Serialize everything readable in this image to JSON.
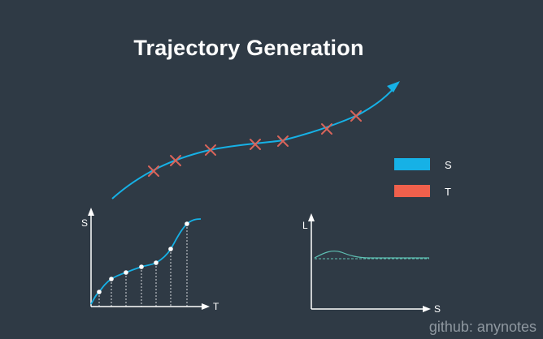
{
  "title": "Trajectory Generation",
  "legend": [
    {
      "label": "S",
      "color": "#16b1e6"
    },
    {
      "label": "T",
      "color": "#f0604c"
    }
  ],
  "left_plot": {
    "y_axis_label": "S",
    "x_axis_label": "T"
  },
  "right_plot": {
    "y_axis_label": "L",
    "x_axis_label": "S"
  },
  "colors": {
    "background": "#2f3a45",
    "curve": "#16b1e6",
    "marker": "#d9645a",
    "axis": "#ffffff",
    "plot_line": "#5fc1b4"
  },
  "watermark": "github: anynotes"
}
